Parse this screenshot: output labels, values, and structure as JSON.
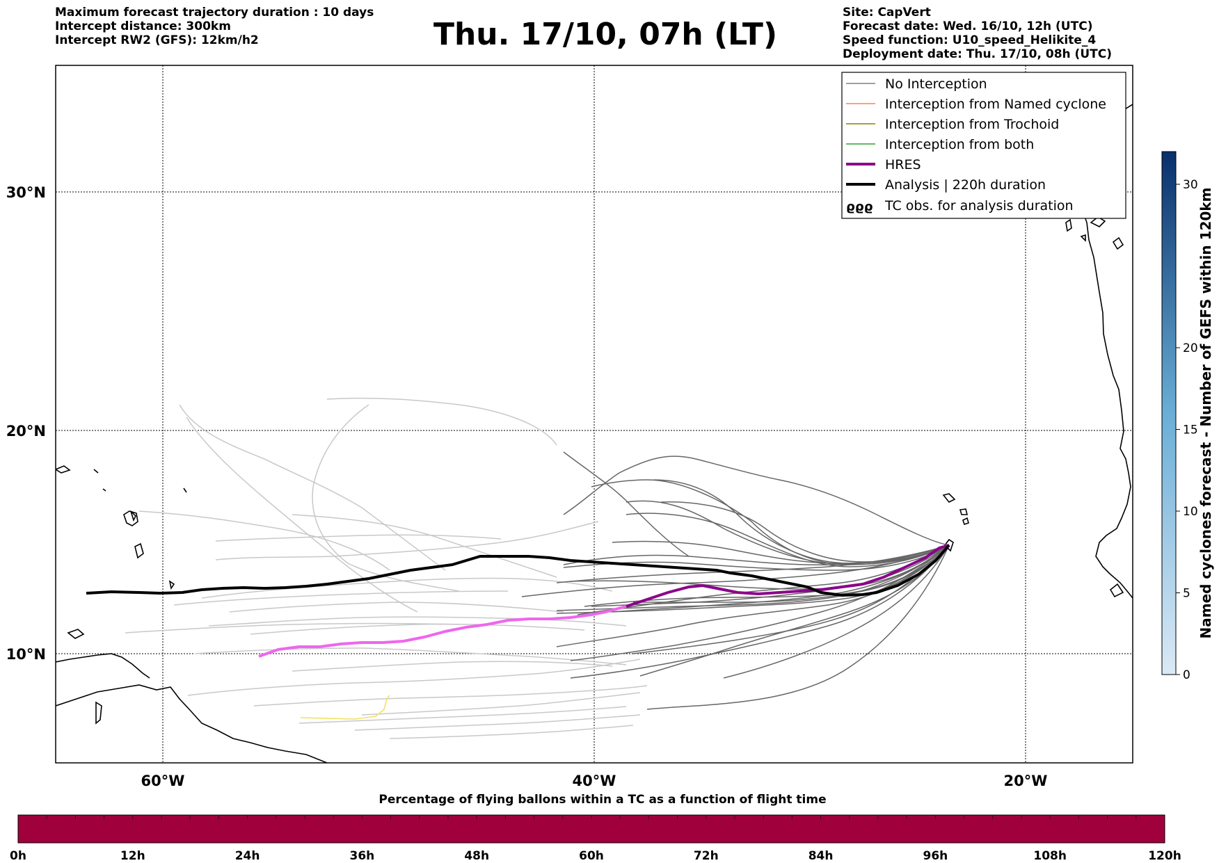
{
  "header": {
    "left_lines": [
      "Maximum forecast trajectory duration : 10 days",
      "Intercept distance: 300km",
      "Intercept RW2 (GFS):  12km/h2"
    ],
    "title": "Thu. 17/10, 07h (LT)",
    "right_lines": [
      "Site: CapVert",
      "Forecast date: Wed. 16/10, 12h (UTC)",
      "Speed function: U10_speed_Helikite_4",
      "Deployment date: Thu. 17/10, 08h (UTC)"
    ]
  },
  "map": {
    "lon_range": [
      -65,
      -15
    ],
    "lat_range": [
      5.4,
      34.7
    ],
    "lon_ticks": [
      {
        "value": -60,
        "label": "60°W"
      },
      {
        "value": -40,
        "label": "40°W"
      },
      {
        "value": -20,
        "label": "20°W"
      }
    ],
    "lat_ticks": [
      {
        "value": 30,
        "label": "30°N"
      },
      {
        "value": 20,
        "label": "20°N"
      },
      {
        "value": 10,
        "label": "10°N"
      }
    ]
  },
  "legend": {
    "entries": [
      {
        "label": "No Interception",
        "color": "#808080",
        "style": "line-thin"
      },
      {
        "label": "Interception from Named cyclone",
        "color": "#ff7f50",
        "style": "line-thin"
      },
      {
        "label": "Interception from Trochoid",
        "color": "#8b8000",
        "style": "line-thin"
      },
      {
        "label": "Interception from both",
        "color": "#2ca02c",
        "style": "line-thin"
      },
      {
        "label": "HRES",
        "color": "#8b008b",
        "style": "line-thick"
      },
      {
        "label": "Analysis | 220h duration",
        "color": "#000000",
        "style": "line-thick"
      },
      {
        "label": "TC obs. for analysis duration",
        "color": "#000000",
        "style": "cyclone-symbols",
        "symbol": "ϱϱϱ"
      }
    ]
  },
  "colorbar_right": {
    "label": "Named cyclones forecast - Number of GEFS within 120km",
    "range": [
      0,
      32
    ],
    "ticks": [
      0,
      5,
      10,
      15,
      20,
      30
    ],
    "color_low": "#dbe9f6",
    "color_high": "#08306b"
  },
  "colorbar_bottom": {
    "title": "Percentage of flying ballons within a TC as a function of flight time",
    "ticks": [
      "0h",
      "12h",
      "24h",
      "36h",
      "48h",
      "60h",
      "72h",
      "84h",
      "96h",
      "108h",
      "120h"
    ],
    "fill_color": "#a0003c"
  },
  "colors": {
    "no_interception_near": "#666666",
    "no_interception_far": "#c8c8c8",
    "hres_early": "#8b008b",
    "hres_late": "#ee66ee",
    "analysis": "#000000",
    "trochoid_track": "#f0e060"
  }
}
